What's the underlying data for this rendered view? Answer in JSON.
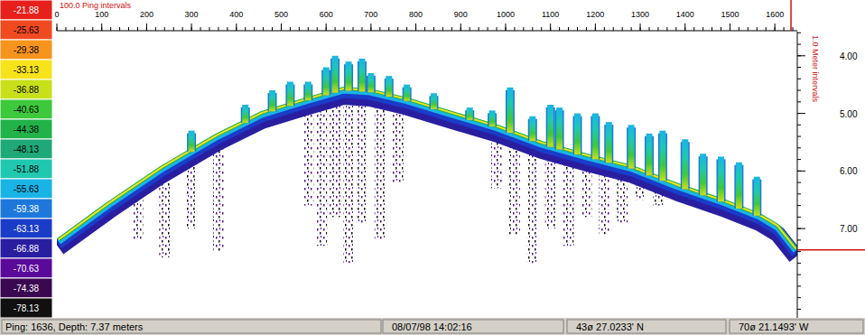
{
  "chart_data": {
    "type": "echogram",
    "x_label": "100.0 Ping intervals",
    "y_label": "1.0 Meter intervals",
    "xlim": [
      0,
      1650
    ],
    "xticks": [
      0,
      100,
      200,
      300,
      400,
      500,
      600,
      700,
      800,
      900,
      1000,
      1100,
      1200,
      1300,
      1400,
      1500,
      1600
    ],
    "ylim": [
      3.58,
      8.55
    ],
    "yticks": [
      {
        "value": 4,
        "label": "4.00"
      },
      {
        "value": 5,
        "label": "5.00"
      },
      {
        "value": 6,
        "label": "6.00"
      },
      {
        "value": 7,
        "label": "7.00"
      }
    ],
    "color_scale": {
      "ticks": [
        -21.88,
        -25.63,
        -29.38,
        -33.13,
        -36.88,
        -40.63,
        -44.38,
        -48.13,
        -51.88,
        -55.63,
        -59.38,
        -63.13,
        -66.88,
        -70.63,
        -74.38,
        -78.13
      ],
      "colors": [
        "#e8201c",
        "#f04a20",
        "#f7941d",
        "#f7e31a",
        "#c8e019",
        "#3ec83c",
        "#22b24a",
        "#1fa878",
        "#20c8b0",
        "#19b4e6",
        "#1e78dc",
        "#1a3cc8",
        "#2a1ea0",
        "#5a0a9a",
        "#3a0850",
        "#101010"
      ]
    },
    "x": [
      4,
      115,
      235,
      356,
      457,
      557,
      638,
      698,
      779,
      880,
      980,
      1081,
      1182,
      1282,
      1383,
      1484,
      1565,
      1606,
      1647
    ],
    "values": [
      7.19,
      6.56,
      5.93,
      5.38,
      4.99,
      4.75,
      4.57,
      4.6,
      4.75,
      4.99,
      5.22,
      5.51,
      5.73,
      5.93,
      6.24,
      6.51,
      6.76,
      6.95,
      7.35
    ],
    "vegetation": {
      "x": [
        300,
        420,
        480,
        520,
        560,
        600,
        620,
        650,
        680,
        700,
        740,
        780,
        840,
        920,
        970,
        1010,
        1060,
        1100,
        1120,
        1160,
        1200,
        1230,
        1280,
        1320,
        1350,
        1400,
        1440,
        1480,
        1520,
        1560
      ],
      "values": [
        5.3,
        4.85,
        4.6,
        4.45,
        4.45,
        4.2,
        4.0,
        4.1,
        4.05,
        4.3,
        4.35,
        4.5,
        4.65,
        4.9,
        4.95,
        4.55,
        5.05,
        4.85,
        4.9,
        5.0,
        5.0,
        5.15,
        5.2,
        5.35,
        5.3,
        5.45,
        5.7,
        5.75,
        5.85,
        6.1
      ]
    },
    "subbottom": {
      "x": [
        180,
        240,
        300,
        360,
        560,
        590,
        620,
        650,
        680,
        720,
        760,
        980,
        1020,
        1060,
        1100,
        1140,
        1180,
        1220,
        1260,
        1300,
        1340
      ],
      "values": [
        7.2,
        7.5,
        7.0,
        7.4,
        6.6,
        7.3,
        6.8,
        7.6,
        6.9,
        7.2,
        6.2,
        6.3,
        7.1,
        7.6,
        7.0,
        7.3,
        6.8,
        7.1,
        6.9,
        6.5,
        6.6
      ]
    },
    "cursor": {
      "x": 1636,
      "y": 7.37
    },
    "status": [
      "Ping: 1636, Depth: 7.37 meters",
      "08/07/98 14:02:16",
      "43ø 27.0233' N",
      "70ø 21.1493' W"
    ]
  }
}
